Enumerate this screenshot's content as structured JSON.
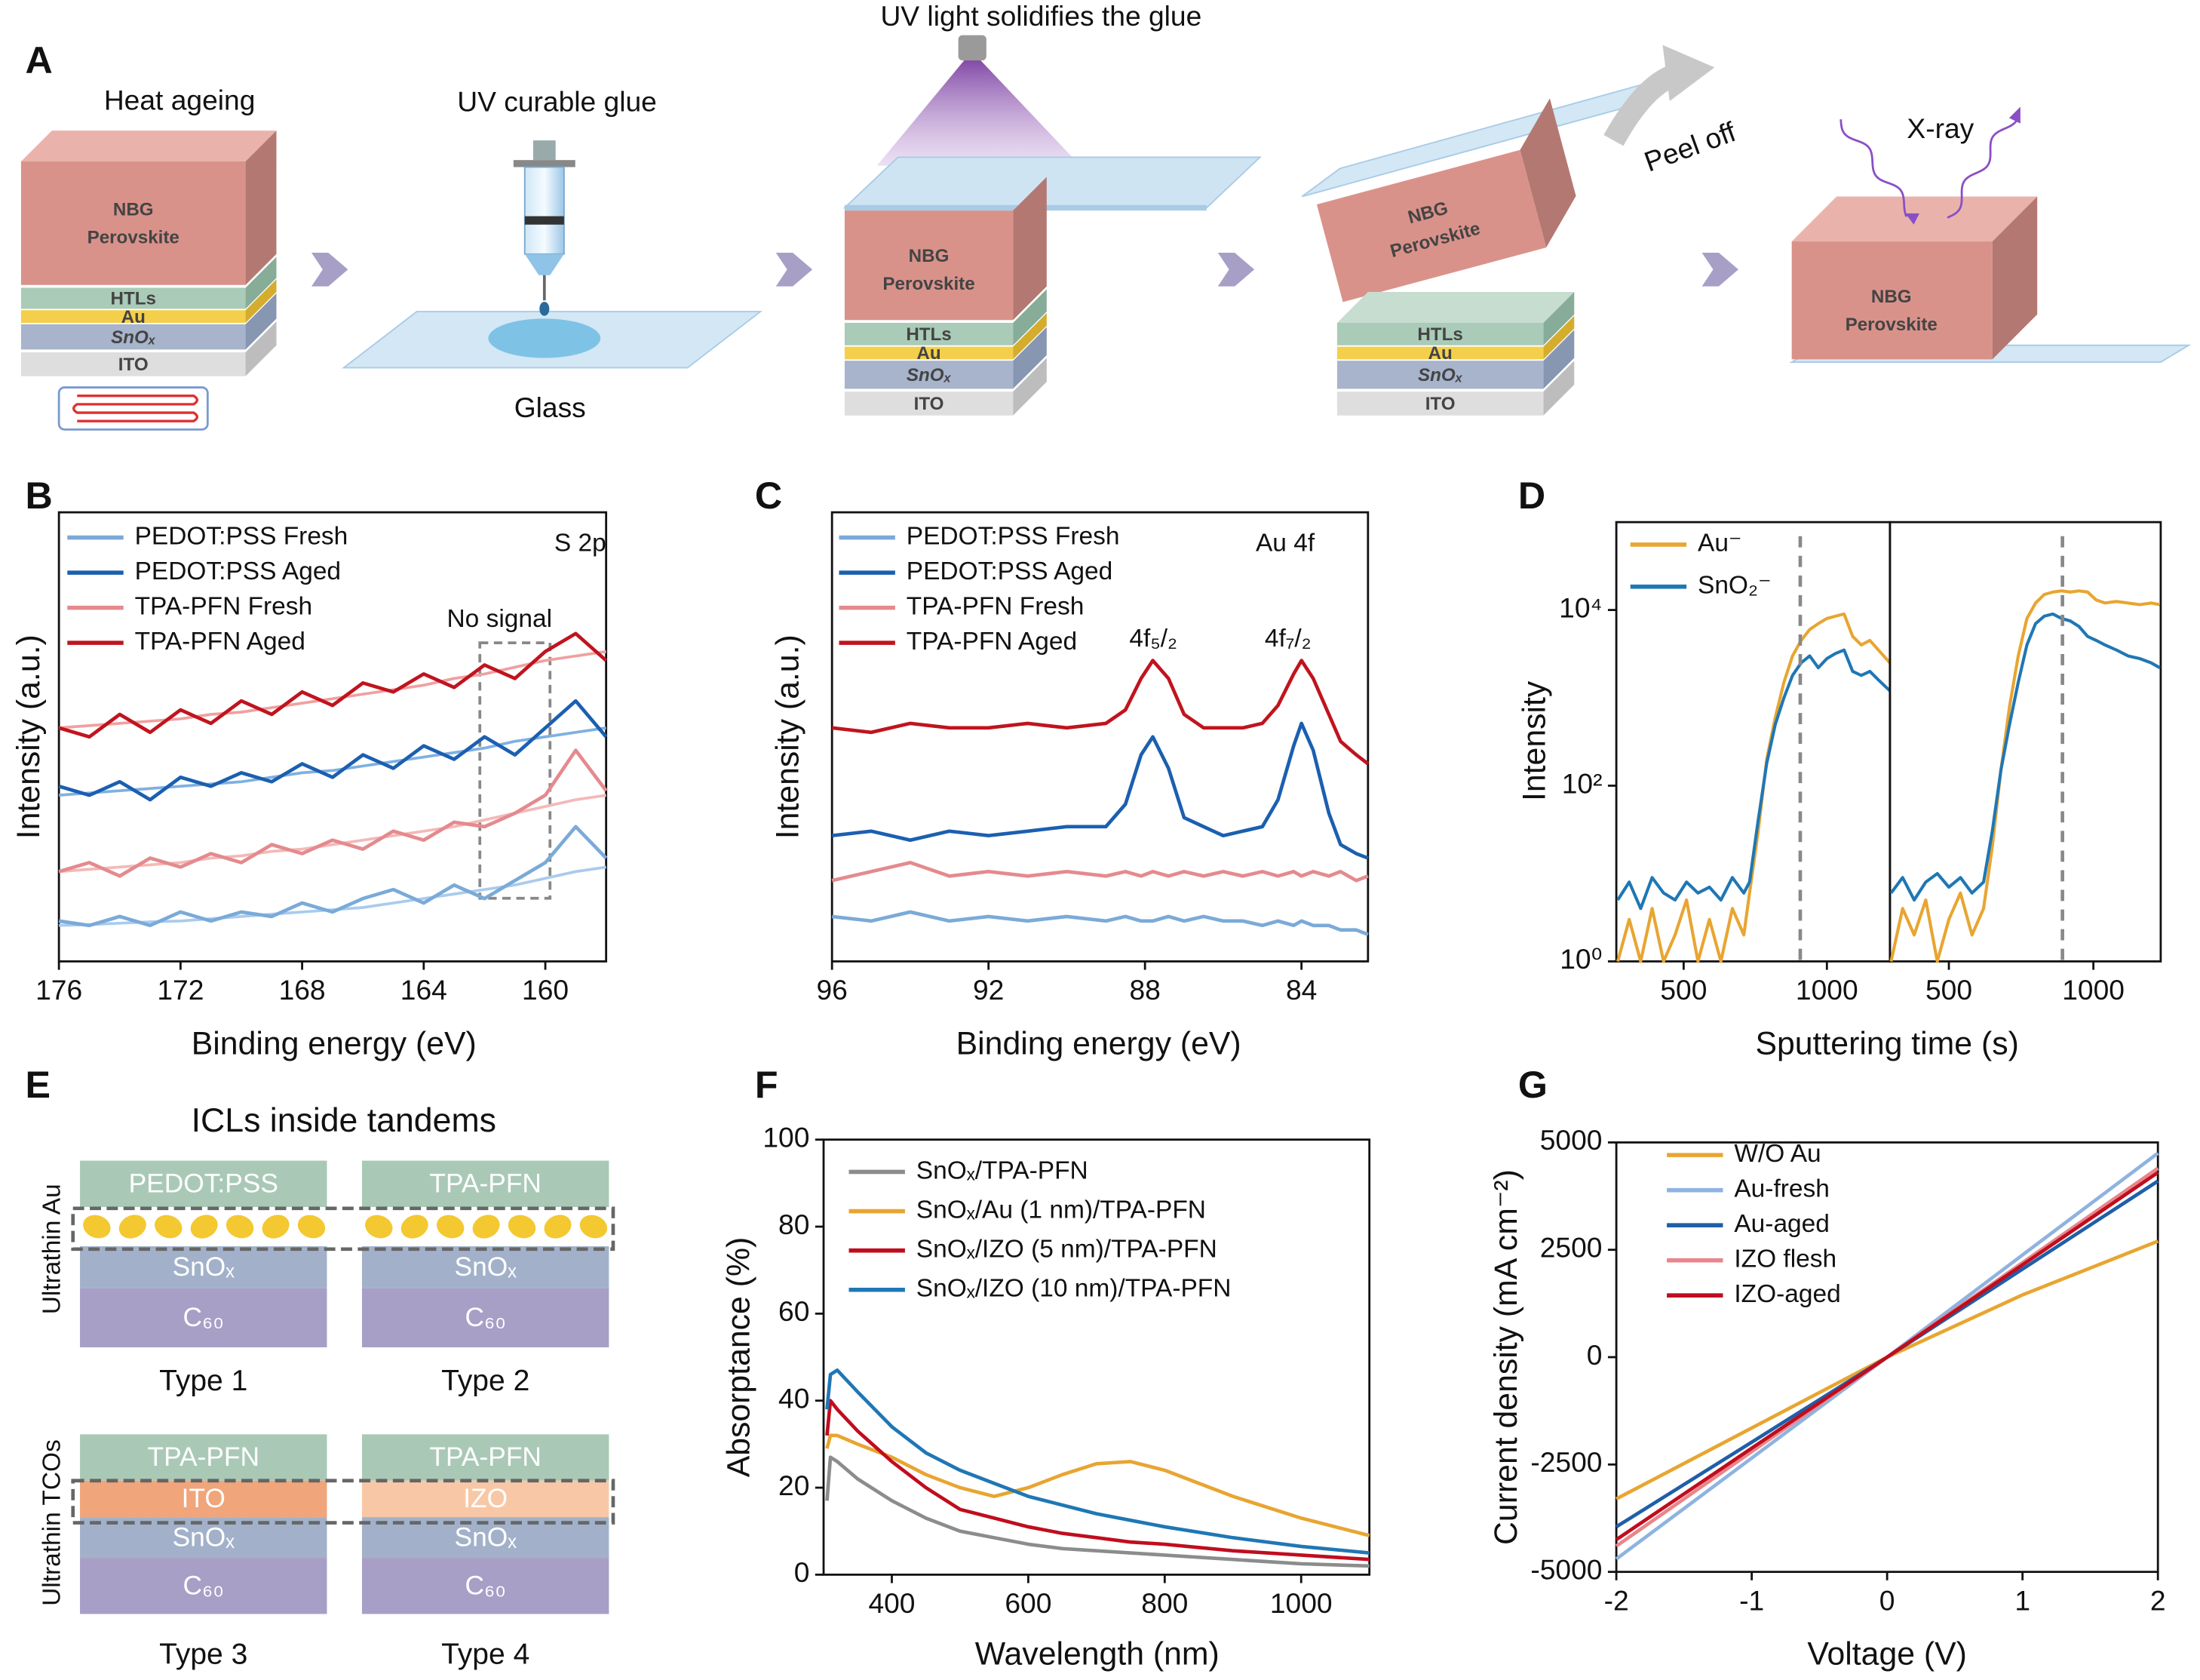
{
  "panel_labels": [
    "A",
    "B",
    "C",
    "D",
    "E",
    "F",
    "G"
  ],
  "panel_a": {
    "steps": [
      "Heat ageing",
      "UV curable glue",
      "UV light solidifies the glue",
      "Peel off",
      "X-ray"
    ],
    "glass": "Glass",
    "perovskite": [
      "NBG",
      "Perovskite"
    ],
    "layers": [
      "HTLs",
      "Au",
      "SnOₓ",
      "ITO"
    ]
  },
  "chart_data": [
    {
      "type": "line",
      "xlabel": "Binding energy (eV)",
      "ylabel": "Intensity (a.u.)",
      "annotations": [
        "S 2p",
        "No signal"
      ],
      "xlim": [
        176,
        158
      ],
      "xticks": [
        176,
        172,
        168,
        164,
        160
      ],
      "ylim": [
        0,
        1
      ],
      "x": [
        176,
        175,
        174,
        173,
        172,
        171,
        170,
        169,
        168,
        167,
        166,
        165,
        164,
        163,
        162,
        161,
        160,
        159,
        158
      ],
      "series": [
        {
          "name": "PEDOT:PSS Fresh",
          "color": "#7aaad8",
          "values": [
            0.09,
            0.08,
            0.1,
            0.08,
            0.11,
            0.09,
            0.11,
            0.1,
            0.13,
            0.11,
            0.14,
            0.16,
            0.13,
            0.17,
            0.14,
            0.18,
            0.22,
            0.3,
            0.23
          ]
        },
        {
          "name": "PEDOT:PSS Aged",
          "color": "#1b5fb0",
          "values": [
            0.39,
            0.37,
            0.4,
            0.36,
            0.41,
            0.39,
            0.42,
            0.4,
            0.44,
            0.41,
            0.46,
            0.43,
            0.48,
            0.45,
            0.5,
            0.46,
            0.52,
            0.58,
            0.5
          ]
        },
        {
          "name": "TPA-PFN Fresh",
          "color": "#e48a8e",
          "values": [
            0.2,
            0.22,
            0.19,
            0.23,
            0.21,
            0.24,
            0.22,
            0.26,
            0.24,
            0.27,
            0.25,
            0.29,
            0.27,
            0.31,
            0.3,
            0.33,
            0.37,
            0.47,
            0.38
          ]
        },
        {
          "name": "TPA-PFN Aged",
          "color": "#c0141e",
          "values": [
            0.52,
            0.5,
            0.55,
            0.51,
            0.56,
            0.53,
            0.58,
            0.55,
            0.6,
            0.57,
            0.62,
            0.6,
            0.64,
            0.61,
            0.66,
            0.63,
            0.69,
            0.73,
            0.67
          ]
        }
      ],
      "fits": [
        {
          "color": "#a9cbee",
          "values": [
            0.08,
            0.082,
            0.085,
            0.088,
            0.09,
            0.095,
            0.1,
            0.105,
            0.11,
            0.115,
            0.12,
            0.13,
            0.14,
            0.15,
            0.16,
            0.17,
            0.185,
            0.2,
            0.21
          ]
        },
        {
          "color": "#7fb0e0",
          "values": [
            0.37,
            0.375,
            0.38,
            0.385,
            0.39,
            0.395,
            0.4,
            0.41,
            0.42,
            0.425,
            0.435,
            0.445,
            0.455,
            0.465,
            0.475,
            0.49,
            0.5,
            0.51,
            0.52
          ]
        },
        {
          "color": "#f5b8b8",
          "values": [
            0.2,
            0.205,
            0.21,
            0.215,
            0.22,
            0.23,
            0.235,
            0.245,
            0.25,
            0.26,
            0.27,
            0.28,
            0.29,
            0.3,
            0.315,
            0.33,
            0.345,
            0.36,
            0.37
          ]
        },
        {
          "color": "#f0a0a0",
          "values": [
            0.52,
            0.525,
            0.53,
            0.535,
            0.54,
            0.55,
            0.555,
            0.565,
            0.575,
            0.585,
            0.595,
            0.605,
            0.615,
            0.63,
            0.64,
            0.655,
            0.67,
            0.68,
            0.69
          ]
        }
      ]
    },
    {
      "type": "line",
      "xlabel": "Binding energy (eV)",
      "ylabel": "Intensity (a.u.)",
      "annotations": [
        "Au 4f",
        "4f₅/₂",
        "4f₇/₂"
      ],
      "xlim": [
        96,
        82.3
      ],
      "xticks": [
        96,
        92,
        88,
        84
      ],
      "ylim": [
        0,
        1
      ],
      "x": [
        96,
        95,
        94,
        93,
        92,
        91,
        90,
        89,
        88.5,
        88.1,
        87.8,
        87.4,
        87,
        86.5,
        86,
        85.5,
        85,
        84.6,
        84.2,
        84,
        83.7,
        83.3,
        83,
        82.6,
        82.3
      ],
      "series": [
        {
          "name": "PEDOT:PSS Fresh",
          "color": "#7aaad8",
          "values": [
            0.1,
            0.09,
            0.11,
            0.09,
            0.1,
            0.09,
            0.1,
            0.09,
            0.1,
            0.09,
            0.09,
            0.1,
            0.09,
            0.1,
            0.09,
            0.09,
            0.08,
            0.09,
            0.08,
            0.09,
            0.08,
            0.08,
            0.07,
            0.07,
            0.06
          ]
        },
        {
          "name": "PEDOT:PSS Aged",
          "color": "#1b5fb0",
          "values": [
            0.28,
            0.29,
            0.27,
            0.29,
            0.28,
            0.29,
            0.3,
            0.3,
            0.35,
            0.46,
            0.5,
            0.43,
            0.32,
            0.3,
            0.28,
            0.29,
            0.3,
            0.36,
            0.48,
            0.53,
            0.47,
            0.33,
            0.26,
            0.24,
            0.23
          ]
        },
        {
          "name": "TPA-PFN Fresh",
          "color": "#e48a8e",
          "values": [
            0.18,
            0.2,
            0.22,
            0.19,
            0.2,
            0.19,
            0.2,
            0.19,
            0.2,
            0.19,
            0.2,
            0.19,
            0.2,
            0.19,
            0.2,
            0.19,
            0.2,
            0.19,
            0.2,
            0.19,
            0.2,
            0.19,
            0.2,
            0.18,
            0.19
          ]
        },
        {
          "name": "TPA-PFN Aged",
          "color": "#c0141e",
          "values": [
            0.52,
            0.51,
            0.53,
            0.52,
            0.52,
            0.53,
            0.52,
            0.53,
            0.56,
            0.63,
            0.67,
            0.63,
            0.55,
            0.52,
            0.52,
            0.52,
            0.53,
            0.57,
            0.64,
            0.67,
            0.63,
            0.55,
            0.49,
            0.46,
            0.44
          ]
        }
      ]
    },
    {
      "type": "line",
      "xlabel": "Sputtering time (s)",
      "ylabel": "Intensity",
      "log_y": true,
      "ylim": [
        1,
        100000
      ],
      "yticks": [
        {
          "value": 1,
          "label": "10⁰"
        },
        {
          "value": 100,
          "label": "10²"
        },
        {
          "value": 10000,
          "label": "10⁴"
        }
      ],
      "series": [
        {
          "name": "Au⁻",
          "color": "#e8a531"
        },
        {
          "name": "SnO₂⁻",
          "color": "#1f77b4"
        }
      ],
      "subplots": [
        {
          "xlim": [
            265,
            1220
          ],
          "xticks": [
            500,
            1000
          ],
          "marker_x": 907,
          "x": [
            270,
            310,
            350,
            390,
            430,
            470,
            510,
            550,
            590,
            630,
            670,
            710,
            730,
            760,
            790,
            820,
            850,
            880,
            910,
            940,
            970,
            1000,
            1030,
            1060,
            1090,
            1120,
            1150,
            1180,
            1220
          ],
          "values": [
            [
              1,
              3,
              1,
              4,
              1,
              2,
              5,
              1,
              3,
              1,
              4,
              2,
              6,
              30,
              200,
              600,
              1500,
              3000,
              4500,
              6000,
              7000,
              8000,
              8500,
              9000,
              5000,
              4000,
              4500,
              3500,
              2500
            ],
            [
              5,
              8,
              4,
              9,
              6,
              5,
              8,
              6,
              7,
              5,
              9,
              6,
              8,
              40,
              180,
              500,
              1000,
              1800,
              2500,
              3000,
              2200,
              2800,
              3200,
              3500,
              2000,
              1800,
              2000,
              1600,
              1200
            ]
          ]
        },
        {
          "xlim": [
            296,
            1233
          ],
          "xticks": [
            500,
            1000
          ],
          "marker_x": 893,
          "x": [
            300,
            340,
            380,
            420,
            460,
            500,
            540,
            580,
            620,
            650,
            680,
            710,
            740,
            770,
            800,
            830,
            860,
            890,
            920,
            950,
            980,
            1010,
            1040,
            1080,
            1120,
            1160,
            1200,
            1230
          ],
          "values": [
            [
              1,
              4,
              2,
              5,
              1,
              3,
              6,
              2,
              4,
              20,
              150,
              800,
              3000,
              8000,
              12000,
              15000,
              16000,
              16500,
              16000,
              16500,
              16000,
              13000,
              12000,
              12500,
              12000,
              11500,
              12000,
              11500
            ],
            [
              6,
              9,
              5,
              8,
              10,
              7,
              9,
              6,
              8,
              30,
              150,
              500,
              1500,
              4000,
              7000,
              8500,
              9000,
              8000,
              7500,
              6500,
              5000,
              4500,
              4000,
              3500,
              3000,
              2800,
              2500,
              2200
            ]
          ]
        }
      ]
    },
    {
      "type": "line",
      "xlabel": "Wavelength (nm)",
      "ylabel": "Absorptance (%)",
      "xlim": [
        300,
        1100
      ],
      "xticks": [
        400,
        600,
        800,
        1000
      ],
      "ylim": [
        0,
        100
      ],
      "yticks": [
        0,
        20,
        40,
        60,
        80,
        100
      ],
      "x": [
        305,
        310,
        320,
        350,
        400,
        450,
        500,
        550,
        600,
        650,
        700,
        750,
        800,
        900,
        1000,
        1100
      ],
      "series": [
        {
          "name": "SnOₓ/TPA-PFN",
          "color": "#8c8c8c",
          "values": [
            17,
            27,
            26,
            22,
            17,
            13,
            10,
            8.5,
            7,
            6,
            5.5,
            5,
            4.5,
            3.5,
            2.5,
            2
          ]
        },
        {
          "name": "SnOₓ/Au (1 nm)/TPA-PFN",
          "color": "#e8a531",
          "values": [
            29,
            32,
            32,
            30,
            27,
            23,
            20,
            18,
            20,
            23,
            25.5,
            26,
            24,
            18,
            13,
            9
          ]
        },
        {
          "name": "SnOₓ/IZO (5 nm)/TPA-PFN",
          "color": "#c00d1e",
          "values": [
            32,
            40,
            38,
            33,
            26,
            20,
            15,
            13,
            11,
            9.5,
            8.5,
            7.5,
            7,
            5.5,
            4.5,
            3.5
          ]
        },
        {
          "name": "SnOₓ/IZO (10 nm)/TPA-PFN",
          "color": "#1f77b4",
          "values": [
            38,
            46,
            47,
            42,
            34,
            28,
            24,
            21,
            18,
            16,
            14,
            12.5,
            11,
            8.5,
            6.5,
            5
          ]
        }
      ]
    },
    {
      "type": "line",
      "xlabel": "Voltage (V)",
      "ylabel": "Current density (mA cm⁻²)",
      "xlim": [
        -2,
        2
      ],
      "xticks": [
        -2,
        -1,
        0,
        1,
        2
      ],
      "ylim": [
        -5000,
        5000
      ],
      "yticks": [
        -5000,
        -2500,
        0,
        2500,
        5000
      ],
      "x": [
        -2,
        -1,
        0,
        1,
        2
      ],
      "series": [
        {
          "name": "W/O Au",
          "color": "#e8a531",
          "values": [
            -3300,
            -1650,
            0,
            1450,
            2700
          ]
        },
        {
          "name": "Au-fresh",
          "color": "#8fb3df",
          "values": [
            -4700,
            -2350,
            0,
            2380,
            4750
          ]
        },
        {
          "name": "Au-aged",
          "color": "#1f5fa8",
          "values": [
            -3950,
            -1980,
            0,
            2050,
            4100
          ]
        },
        {
          "name": "IZO flesh",
          "color": "#e8868b",
          "values": [
            -4400,
            -2200,
            0,
            2200,
            4400
          ]
        },
        {
          "name": "IZO-aged",
          "color": "#c00d1e",
          "values": [
            -4250,
            -2120,
            0,
            2150,
            4300
          ]
        }
      ]
    }
  ],
  "panel_e": {
    "title": "ICLs inside tandems",
    "row_labels": [
      "Ultrathin Au",
      "Ultrathin TCOs"
    ],
    "types": [
      {
        "layers": [
          "PEDOT:PSS",
          "SnOₓ",
          "C₆₀"
        ],
        "label": "Type 1"
      },
      {
        "layers": [
          "TPA-PFN",
          "SnOₓ",
          "C₆₀"
        ],
        "label": "Type 2"
      },
      {
        "layers": [
          "TPA-PFN",
          "ITO",
          "SnOₓ",
          "C₆₀"
        ],
        "label": "Type 3"
      },
      {
        "layers": [
          "TPA-PFN",
          "IZO",
          "SnOₓ",
          "C₆₀"
        ],
        "label": "Type 4"
      }
    ]
  }
}
